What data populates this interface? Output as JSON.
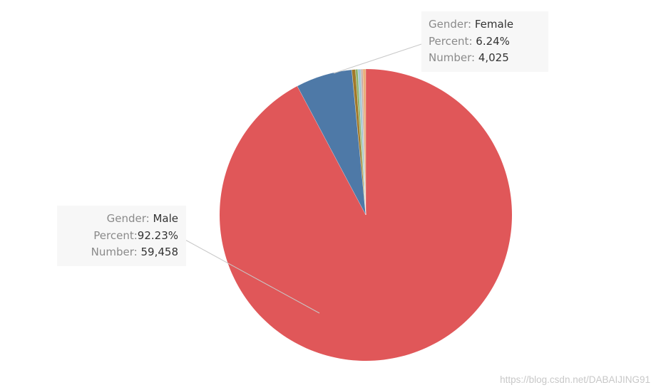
{
  "chart_data": {
    "type": "pie",
    "slices": [
      {
        "label": "Male",
        "percent": 92.23,
        "number": 59458,
        "color": "#e05759"
      },
      {
        "label": "Female",
        "percent": 6.24,
        "number": 4025,
        "color": "#4e79a7"
      },
      {
        "label": "",
        "percent": 0.4,
        "color": "#a0792a"
      },
      {
        "label": "",
        "percent": 0.26,
        "color": "#8cb26b"
      },
      {
        "label": "",
        "percent": 0.35,
        "color": "#a6c7d4"
      },
      {
        "label": "",
        "percent": 0.2,
        "color": "#c9a8a0"
      },
      {
        "label": "",
        "percent": 0.32,
        "color": "#e9b07a"
      }
    ]
  },
  "callouts": {
    "male": {
      "gender_key": "Gender:",
      "gender_val": "Male",
      "percent_key": "Percent:",
      "percent_val": "92.23%",
      "number_key": "Number:",
      "number_val": "59,458"
    },
    "female": {
      "gender_key": "Gender:",
      "gender_val": "Female",
      "percent_key": "Percent:",
      "percent_val": "6.24%",
      "number_key": "Number:",
      "number_val": "4,025"
    }
  },
  "watermark": "https://blog.csdn.net/DABAIJING91"
}
